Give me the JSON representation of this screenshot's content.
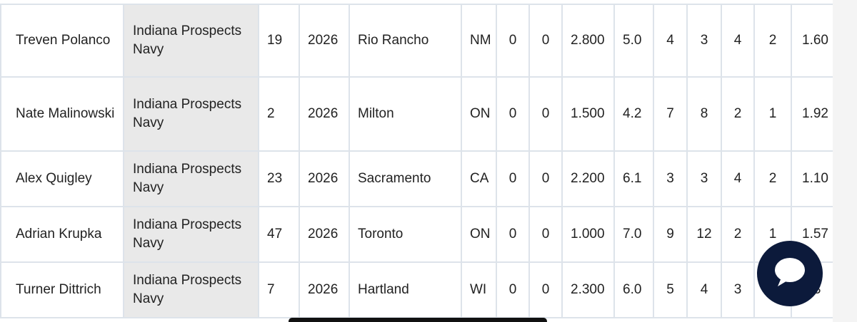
{
  "table": {
    "rows": [
      {
        "name": "Treven Polanco",
        "team": "Indiana Prospects Navy",
        "number": "19",
        "year": "2026",
        "city": "Rio Rancho",
        "state": "NM",
        "c1": "0",
        "c2": "0",
        "c3": "2.800",
        "c4": "5.0",
        "c5": "4",
        "c6": "3",
        "c7": "4",
        "c8": "2",
        "c9": "1.60"
      },
      {
        "name": "Nate Malinowski",
        "team": "Indiana Prospects Navy",
        "number": "2",
        "year": "2026",
        "city": "Milton",
        "state": "ON",
        "c1": "0",
        "c2": "0",
        "c3": "1.500",
        "c4": "4.2",
        "c5": "7",
        "c6": "8",
        "c7": "2",
        "c8": "1",
        "c9": "1.92"
      },
      {
        "name": "Alex Quigley",
        "team": "Indiana Prospects Navy",
        "number": "23",
        "year": "2026",
        "city": "Sacramento",
        "state": "CA",
        "c1": "0",
        "c2": "0",
        "c3": "2.200",
        "c4": "6.1",
        "c5": "3",
        "c6": "3",
        "c7": "4",
        "c8": "2",
        "c9": "1.10"
      },
      {
        "name": "Adrian Krupka",
        "team": "Indiana Prospects Navy",
        "number": "47",
        "year": "2026",
        "city": "Toronto",
        "state": "ON",
        "c1": "0",
        "c2": "0",
        "c3": "1.000",
        "c4": "7.0",
        "c5": "9",
        "c6": "12",
        "c7": "2",
        "c8": "1",
        "c9": "1.57"
      },
      {
        "name": "Turner Dittrich",
        "team": "Indiana Prospects Navy",
        "number": "7",
        "year": "2026",
        "city": "Hartland",
        "state": "WI",
        "c1": "0",
        "c2": "0",
        "c3": "2.300",
        "c4": "6.0",
        "c5": "5",
        "c6": "4",
        "c7": "3",
        "c8": "",
        "c9": ".33"
      }
    ]
  },
  "chat_button": {
    "icon": "chat-bubble-icon",
    "color": "#0c1a3b"
  },
  "colors": {
    "grid": "#dde3ea",
    "team_bg": "#e9e9e9",
    "text": "#222222"
  }
}
